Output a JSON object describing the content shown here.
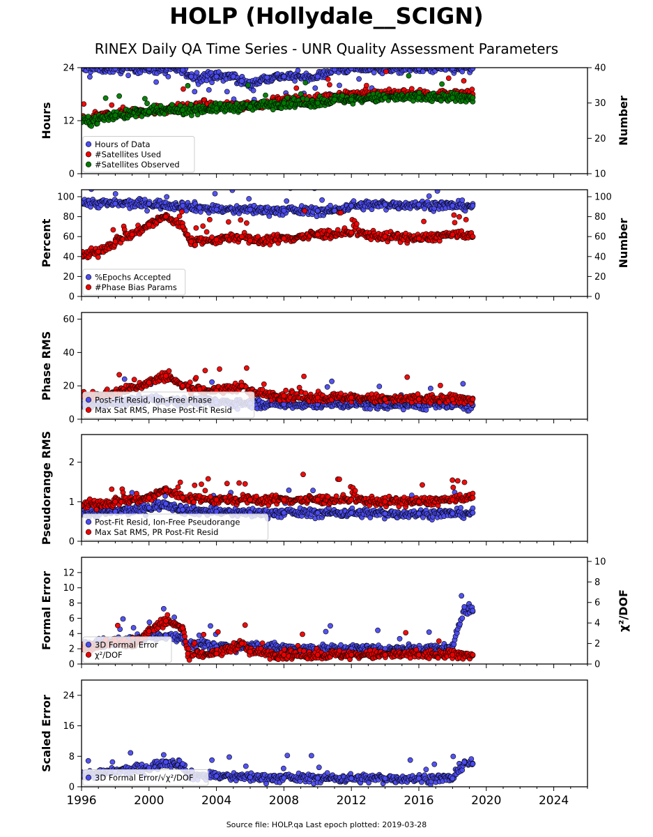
{
  "title": "HOLP (Hollydale__SCIGN)",
  "subtitle": "RINEX Daily QA Time Series - UNR Quality Assessment Parameters",
  "footer": "Source file: HOLP.qa Last epoch plotted: 2019-03-28",
  "colors": {
    "blue": "#4b4bf0",
    "red": "#ee0000",
    "green": "#007a00",
    "edge": "#000000"
  },
  "chart_data": [
    {
      "type": "scatter",
      "ylabel": "Hours",
      "ylabel_right": "Number",
      "ylim": [
        0,
        24
      ],
      "ylim_right": [
        10,
        40
      ],
      "yticks": [
        0,
        12,
        24
      ],
      "yticks_right": [
        10,
        20,
        30,
        40
      ],
      "xlim": [
        1996,
        2026
      ],
      "grid": false,
      "legend": "lower-left",
      "series": [
        {
          "name": "Hours of Data",
          "color": "blue",
          "axis": "left",
          "x": [
            1996,
            1998,
            2000,
            2002,
            2002.5,
            2004,
            2005,
            2005.5,
            2006,
            2007,
            2008,
            2010,
            2011,
            2012,
            2014,
            2016,
            2018,
            2019.2
          ],
          "y": [
            23.8,
            23.8,
            23.8,
            23.5,
            22,
            22,
            22,
            21,
            20,
            21.8,
            22,
            22,
            23.6,
            23.8,
            23.8,
            23.8,
            23.8,
            23.8
          ]
        },
        {
          "name": "#Satellites Used",
          "color": "red",
          "axis": "right",
          "x": [
            1996,
            1998,
            2000,
            2002,
            2004,
            2006,
            2008,
            2010,
            2011,
            2012,
            2014,
            2016,
            2018,
            2019.2
          ],
          "y": [
            25,
            27,
            28,
            28.5,
            29,
            29.5,
            30.5,
            31,
            32,
            32.5,
            32.5,
            32.5,
            32.5,
            32.5
          ]
        },
        {
          "name": "#Satellites Observed",
          "color": "green",
          "axis": "right",
          "x": [
            1996,
            1998,
            2000,
            2002,
            2004,
            2006,
            2008,
            2010,
            2011,
            2012,
            2014,
            2016,
            2018,
            2019.2
          ],
          "y": [
            24.5,
            26.5,
            27.5,
            28,
            28.5,
            29,
            30,
            30,
            31,
            31,
            31.5,
            31.5,
            31.5,
            31.5
          ]
        }
      ]
    },
    {
      "type": "scatter",
      "ylabel": "Percent",
      "ylabel_right": "Number",
      "ylim": [
        0,
        107
      ],
      "ylim_right": [
        0,
        107
      ],
      "yticks": [
        0,
        20,
        40,
        60,
        80,
        100
      ],
      "yticks_right": [
        0,
        20,
        40,
        60,
        80,
        100
      ],
      "xlim": [
        1996,
        2026
      ],
      "grid": false,
      "legend": "lower-left",
      "series": [
        {
          "name": "%Epochs Accepted",
          "color": "blue",
          "axis": "left",
          "x": [
            1996,
            1998,
            2000,
            2002,
            2003,
            2004,
            2006,
            2008,
            2010,
            2011,
            2012,
            2014,
            2016,
            2018,
            2019.2
          ],
          "y": [
            94,
            93,
            93,
            91,
            89,
            87,
            87,
            86,
            86,
            86,
            91,
            92,
            92,
            91,
            91
          ]
        },
        {
          "name": "#Phase Bias Params",
          "color": "red",
          "axis": "right",
          "x": [
            1996,
            1997,
            1998,
            1999,
            2000,
            2001,
            2002,
            2002.5,
            2004,
            2005.5,
            2006,
            2008,
            2010,
            2012,
            2014,
            2016,
            2018,
            2019.2
          ],
          "y": [
            40,
            45,
            55,
            62,
            72,
            80,
            70,
            55,
            57,
            60,
            56,
            58,
            62,
            64,
            60,
            58,
            62,
            60
          ]
        }
      ]
    },
    {
      "type": "scatter",
      "ylabel": "Phase RMS",
      "ylim": [
        0,
        64
      ],
      "yticks": [
        0,
        20,
        40,
        60
      ],
      "xlim": [
        1996,
        2026
      ],
      "grid": false,
      "legend": "lower-left",
      "series": [
        {
          "name": "Post-Fit Resid, Ion-Free Phase",
          "color": "blue",
          "axis": "left",
          "x": [
            1996,
            1998,
            2000,
            2002,
            2004,
            2006,
            2008,
            2010,
            2012,
            2014,
            2016,
            2018,
            2019.2
          ],
          "y": [
            9,
            10,
            12,
            11,
            10,
            9.5,
            9,
            9,
            9,
            8.5,
            8.5,
            8.5,
            8.5
          ]
        },
        {
          "name": "Max Sat RMS, Phase Post-Fit Resid",
          "color": "red",
          "axis": "left",
          "x": [
            1996,
            1998,
            2000,
            2001,
            2002,
            2003,
            2004,
            2005.5,
            2006,
            2008,
            2010,
            2012,
            2014,
            2016,
            2018,
            2019.2
          ],
          "y": [
            14,
            16,
            22,
            26,
            20,
            18,
            17,
            20,
            16,
            14,
            13,
            13,
            12,
            12,
            12,
            12
          ]
        }
      ]
    },
    {
      "type": "scatter",
      "ylabel": "Pseudorange RMS",
      "ylim": [
        0,
        2.7
      ],
      "yticks": [
        0,
        1,
        2
      ],
      "xlim": [
        1996,
        2026
      ],
      "grid": false,
      "legend": "lower-left",
      "series": [
        {
          "name": "Post-Fit Resid, Ion-Free Pseudorange",
          "color": "blue",
          "axis": "left",
          "x": [
            1996,
            1998,
            2000,
            2001,
            2002,
            2004,
            2006,
            2008,
            2010,
            2012,
            2014,
            2016,
            2018,
            2019.2
          ],
          "y": [
            0.7,
            0.75,
            0.85,
            0.95,
            0.8,
            0.75,
            0.72,
            0.72,
            0.72,
            0.72,
            0.7,
            0.7,
            0.7,
            0.72
          ]
        },
        {
          "name": "Max Sat RMS, PR Post-Fit Resid",
          "color": "red",
          "axis": "left",
          "x": [
            1996,
            1998,
            2000,
            2001,
            2002,
            2004,
            2006,
            2008,
            2010,
            2012,
            2014,
            2016,
            2018,
            2019.2
          ],
          "y": [
            0.9,
            1.0,
            1.1,
            1.3,
            1.1,
            1.05,
            1.05,
            1.05,
            1.05,
            1.05,
            1.0,
            1.0,
            1.05,
            1.1
          ]
        }
      ]
    },
    {
      "type": "scatter",
      "ylabel": "Formal Error",
      "ylabel_right": "χ²/DOF",
      "ylim": [
        0,
        14
      ],
      "ylim_right": [
        0,
        10.4
      ],
      "yticks": [
        0,
        2,
        4,
        6,
        8,
        10,
        12
      ],
      "yticks_right": [
        0,
        2,
        4,
        6,
        8,
        10
      ],
      "xlim": [
        1996,
        2026
      ],
      "grid": false,
      "legend": "lower-left",
      "series": [
        {
          "name": "3D Formal Error",
          "color": "blue",
          "axis": "left",
          "x": [
            1996,
            1998,
            2000,
            2001,
            2002,
            2002.3,
            2004,
            2006,
            2008,
            2010,
            2012,
            2014,
            2016,
            2018,
            2018.7,
            2019.2
          ],
          "y": [
            2.5,
            2.8,
            3.5,
            3.8,
            3.5,
            2.5,
            2.3,
            2.3,
            2.1,
            2.0,
            2.0,
            2.0,
            2.0,
            2.0,
            7.5,
            7.0
          ]
        },
        {
          "name": "χ²/DOF",
          "color": "red",
          "axis": "right",
          "x": [
            1996,
            1998,
            1999,
            2000,
            2001,
            2002,
            2002.3,
            2004,
            2005.5,
            2006,
            2008,
            2010,
            2012,
            2014,
            2016,
            2018,
            2019.2
          ],
          "y": [
            1.5,
            2.2,
            1.8,
            3.2,
            4.2,
            3.5,
            1.0,
            1.0,
            2.0,
            1.2,
            0.9,
            0.9,
            0.9,
            0.9,
            0.9,
            0.9,
            0.9
          ]
        }
      ]
    },
    {
      "type": "scatter",
      "ylabel": "Scaled Error",
      "ylim": [
        0,
        28
      ],
      "yticks": [
        0,
        8,
        16,
        24
      ],
      "xlim": [
        1996,
        2026
      ],
      "xticks": [
        1996,
        2000,
        2004,
        2008,
        2012,
        2016,
        2020,
        2024
      ],
      "grid": false,
      "legend": "lower-left",
      "series": [
        {
          "name": "3D Formal Error/√χ²/DOF",
          "color": "blue",
          "axis": "left",
          "x": [
            1996,
            1998,
            2000,
            2001,
            2002,
            2002.3,
            2004,
            2006,
            2008,
            2010,
            2012,
            2014,
            2016,
            2018,
            2018.7,
            2019.2
          ],
          "y": [
            3,
            4,
            5,
            6.5,
            6,
            3,
            2.8,
            2.5,
            2.3,
            2.3,
            2.2,
            2.2,
            2.2,
            2.2,
            6.5,
            6
          ]
        }
      ]
    }
  ]
}
